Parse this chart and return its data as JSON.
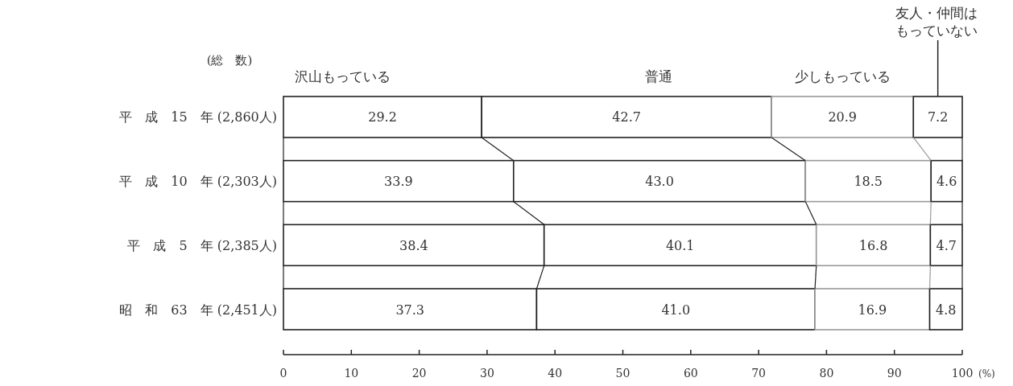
{
  "chart_data": {
    "type": "bar",
    "orientation": "horizontal",
    "stacked": true,
    "categories": [
      "平　成　15　年 (2,860人)",
      "平　成　10　年 (2,303人)",
      "平　成　5　年 (2,385人)",
      "昭　和　63　年 (2,451人)"
    ],
    "series": [
      {
        "name": "沢山もっている",
        "color": "#ffffff",
        "values": [
          29.2,
          33.9,
          38.4,
          37.3
        ],
        "value_labels": [
          "29.2",
          "33.9",
          "38.4",
          "37.3"
        ]
      },
      {
        "name": "普通",
        "color": "#ffffff",
        "values": [
          42.7,
          43.0,
          40.1,
          41.0
        ],
        "value_labels": [
          "42.7",
          "43.0",
          "40.1",
          "41.0"
        ]
      },
      {
        "name": "少しもっている",
        "color": "#ffffff",
        "values": [
          20.9,
          18.5,
          16.8,
          16.9
        ],
        "value_labels": [
          "20.9",
          "18.5",
          "16.8",
          "16.9"
        ]
      },
      {
        "name": "友人・仲間はもっていない",
        "color": "#ffffff",
        "values": [
          7.2,
          4.6,
          4.7,
          4.8
        ],
        "value_labels": [
          "7.2",
          "4.6",
          "4.7",
          "4.8"
        ]
      }
    ],
    "xlabel": "(%)",
    "xlim": [
      0,
      100
    ],
    "xticks": [
      0,
      10,
      20,
      30,
      40,
      50,
      60,
      70,
      80,
      90,
      100
    ],
    "annotations": [
      "(総　数)"
    ]
  }
}
